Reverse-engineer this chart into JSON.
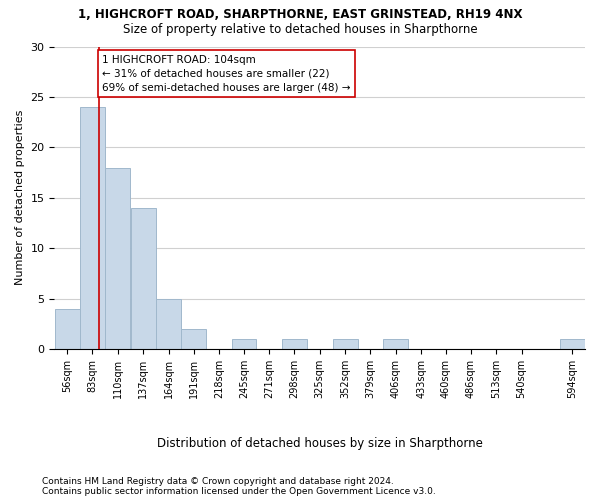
{
  "title1": "1, HIGHCROFT ROAD, SHARPTHORNE, EAST GRINSTEAD, RH19 4NX",
  "title2": "Size of property relative to detached houses in Sharpthorne",
  "xlabel": "Distribution of detached houses by size in Sharpthorne",
  "ylabel": "Number of detached properties",
  "bar_edges": [
    56,
    83,
    110,
    137,
    164,
    191,
    218,
    245,
    271,
    298,
    325,
    352,
    379,
    406,
    433,
    460,
    486,
    513,
    540,
    567,
    594
  ],
  "bar_heights": [
    4,
    24,
    18,
    14,
    5,
    2,
    0,
    1,
    0,
    1,
    0,
    1,
    0,
    1,
    0,
    0,
    0,
    0,
    0,
    1
  ],
  "bar_color": "#c8d8e8",
  "bar_edgecolor": "#a0b8cc",
  "property_line_x": 104,
  "property_line_color": "#cc0000",
  "annotation_line1": "1 HIGHCROFT ROAD: 104sqm",
  "annotation_line2": "← 31% of detached houses are smaller (22)",
  "annotation_line3": "69% of semi-detached houses are larger (48) →",
  "annotation_box_edgecolor": "#cc0000",
  "annotation_fontsize": 7.5,
  "yticks": [
    0,
    5,
    10,
    15,
    20,
    25,
    30
  ],
  "ylim": [
    0,
    30
  ],
  "grid_color": "#d0d0d0",
  "background_color": "#ffffff",
  "tick_label_fontsize": 7,
  "title1_fontsize": 8.5,
  "title2_fontsize": 8.5,
  "ylabel_fontsize": 8,
  "xlabel_fontsize": 8.5,
  "footnote1": "Contains HM Land Registry data © Crown copyright and database right 2024.",
  "footnote2": "Contains public sector information licensed under the Open Government Licence v3.0.",
  "footnote_fontsize": 6.5
}
